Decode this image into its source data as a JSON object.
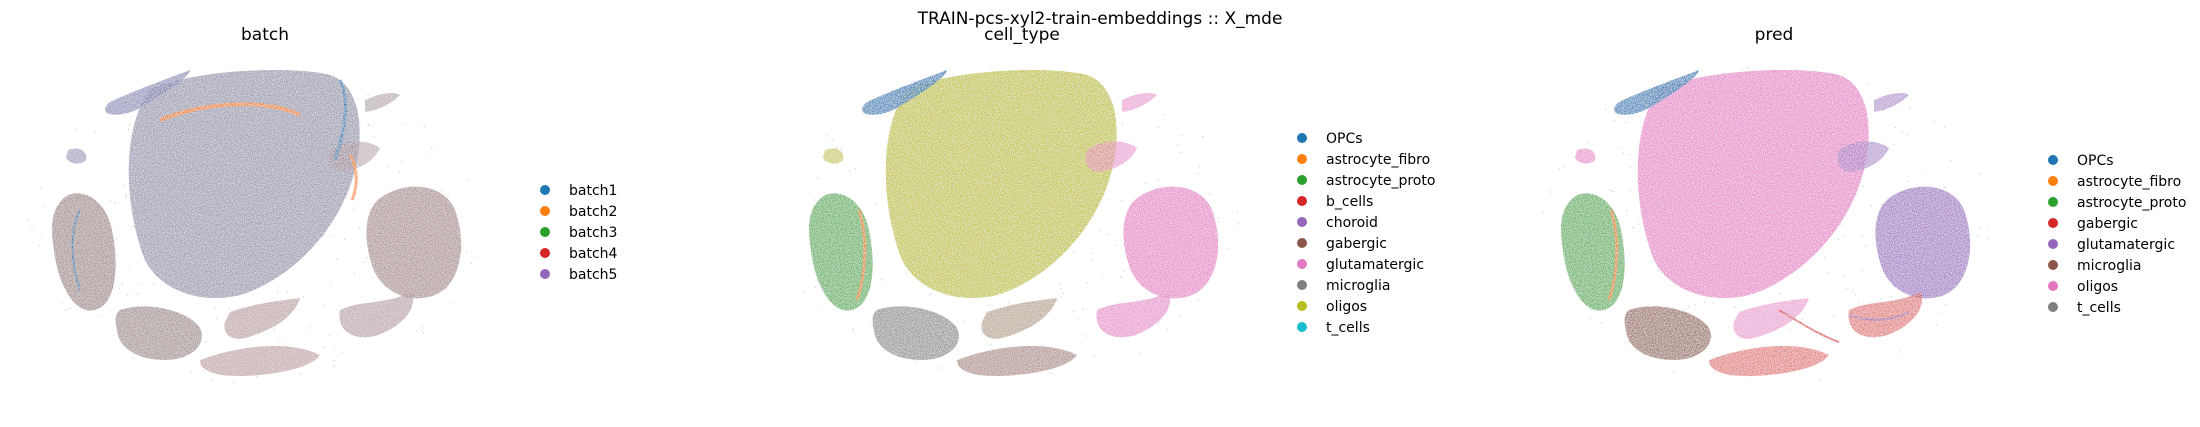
{
  "figure_title": "TRAIN-pcs-xyl2-train-embeddings :: X_mde",
  "chart_data": [
    {
      "type": "scatter",
      "title": "batch",
      "legend_position": "right",
      "grid": false,
      "axes_visible": false,
      "series": [
        {
          "name": "batch1",
          "color": "#1f77b4"
        },
        {
          "name": "batch2",
          "color": "#ff7f0e"
        },
        {
          "name": "batch3",
          "color": "#2ca02c"
        },
        {
          "name": "batch4",
          "color": "#d62728"
        },
        {
          "name": "batch5",
          "color": "#9467bd"
        }
      ]
    },
    {
      "type": "scatter",
      "title": "cell_type",
      "legend_position": "right",
      "grid": false,
      "axes_visible": false,
      "series": [
        {
          "name": "OPCs",
          "color": "#1f77b4"
        },
        {
          "name": "astrocyte_fibro",
          "color": "#ff7f0e"
        },
        {
          "name": "astrocyte_proto",
          "color": "#2ca02c"
        },
        {
          "name": "b_cells",
          "color": "#d62728"
        },
        {
          "name": "choroid",
          "color": "#9467bd"
        },
        {
          "name": "gabergic",
          "color": "#8c564b"
        },
        {
          "name": "glutamatergic",
          "color": "#e377c2"
        },
        {
          "name": "microglia",
          "color": "#7f7f7f"
        },
        {
          "name": "oligos",
          "color": "#bcbd22"
        },
        {
          "name": "t_cells",
          "color": "#17becf"
        }
      ]
    },
    {
      "type": "scatter",
      "title": "pred",
      "legend_position": "right",
      "grid": false,
      "axes_visible": false,
      "series": [
        {
          "name": "OPCs",
          "color": "#1f77b4"
        },
        {
          "name": "astrocyte_fibro",
          "color": "#ff7f0e"
        },
        {
          "name": "astrocyte_proto",
          "color": "#2ca02c"
        },
        {
          "name": "gabergic",
          "color": "#d62728"
        },
        {
          "name": "glutamatergic",
          "color": "#9467bd"
        },
        {
          "name": "microglia",
          "color": "#8c564b"
        },
        {
          "name": "oligos",
          "color": "#e377c2"
        },
        {
          "name": "t_cells",
          "color": "#7f7f7f"
        }
      ]
    }
  ]
}
